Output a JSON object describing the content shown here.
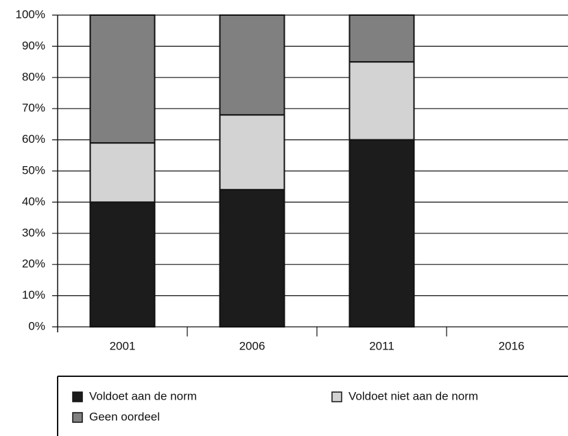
{
  "chart_data": {
    "type": "stacked_bar",
    "categories": [
      "2001",
      "2006",
      "2011",
      "2016"
    ],
    "series": [
      {
        "name": "Voldoet aan de norm",
        "color": "#1c1c1c",
        "values": [
          40,
          44,
          60,
          null
        ]
      },
      {
        "name": "Voldoet niet aan de norm",
        "color": "#d3d3d3",
        "values": [
          19,
          24,
          25,
          null
        ]
      },
      {
        "name": "Geen oordeel",
        "color": "#808080",
        "values": [
          41,
          32,
          15,
          null
        ]
      }
    ],
    "ylim": [
      0,
      100
    ],
    "yticks": [
      {
        "value": 0,
        "label": "0%"
      },
      {
        "value": 10,
        "label": "10%"
      },
      {
        "value": 20,
        "label": "20%"
      },
      {
        "value": 30,
        "label": "30%"
      },
      {
        "value": 40,
        "label": "40%"
      },
      {
        "value": 50,
        "label": "50%"
      },
      {
        "value": 60,
        "label": "60%"
      },
      {
        "value": 70,
        "label": "70%"
      },
      {
        "value": 80,
        "label": "80%"
      },
      {
        "value": 90,
        "label": "90%"
      },
      {
        "value": 100,
        "label": "100%"
      }
    ],
    "grid": true
  }
}
